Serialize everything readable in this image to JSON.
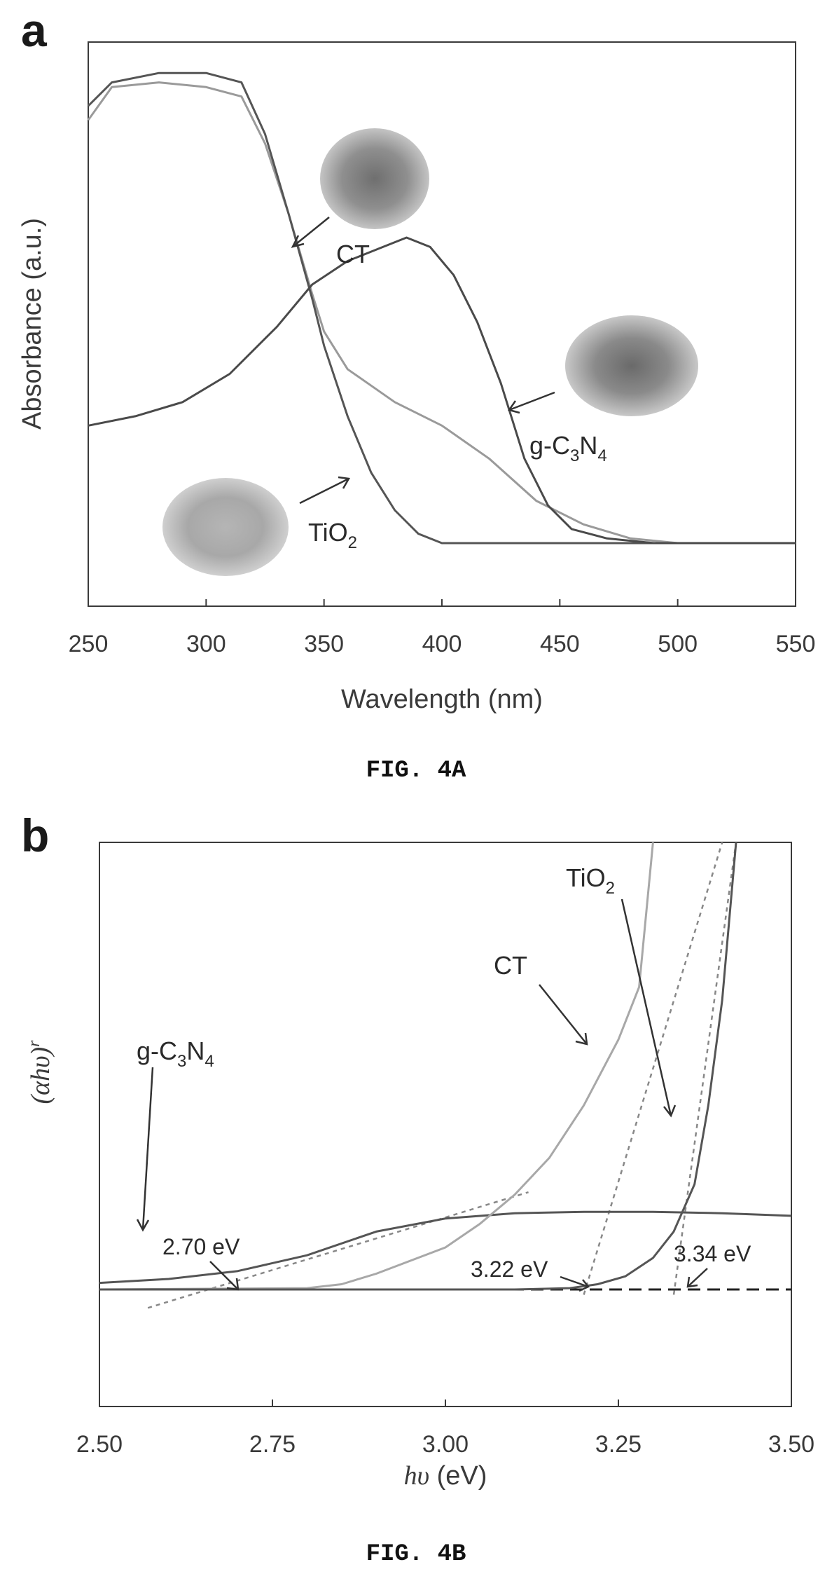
{
  "chart_data": [
    {
      "panel": "a",
      "type": "line",
      "xlabel": "Wavelength (nm)",
      "ylabel": "Absorbance (a.u.)",
      "xlim": [
        250,
        550
      ],
      "ylim": [
        0,
        1.2
      ],
      "xticks": [
        "250",
        "300",
        "350",
        "400",
        "450",
        "500",
        "550"
      ],
      "series": [
        {
          "name": "CT",
          "color": "#9a9a9a",
          "x": [
            250,
            260,
            280,
            300,
            315,
            325,
            335,
            345,
            350,
            360,
            380,
            400,
            420,
            440,
            460,
            480,
            500,
            550
          ],
          "y": [
            0.9,
            0.97,
            0.98,
            0.97,
            0.95,
            0.85,
            0.7,
            0.53,
            0.45,
            0.37,
            0.3,
            0.25,
            0.18,
            0.09,
            0.04,
            0.01,
            0.0,
            0.0
          ]
        },
        {
          "name": "TiO2",
          "color": "#555555",
          "x": [
            250,
            260,
            280,
            300,
            315,
            325,
            335,
            345,
            350,
            360,
            370,
            380,
            390,
            400,
            410,
            550
          ],
          "y": [
            0.93,
            0.98,
            1.0,
            1.0,
            0.98,
            0.87,
            0.7,
            0.52,
            0.42,
            0.27,
            0.15,
            0.07,
            0.02,
            0.0,
            0.0,
            0.0
          ]
        },
        {
          "name": "g-C3N4",
          "color": "#4a4a4a",
          "x": [
            250,
            270,
            290,
            310,
            330,
            345,
            360,
            375,
            385,
            395,
            405,
            415,
            425,
            435,
            445,
            455,
            470,
            490,
            510,
            550
          ],
          "y": [
            0.25,
            0.27,
            0.3,
            0.36,
            0.46,
            0.55,
            0.6,
            0.63,
            0.65,
            0.63,
            0.57,
            0.47,
            0.34,
            0.18,
            0.08,
            0.03,
            0.01,
            0.0,
            0.0,
            0.0
          ]
        }
      ],
      "labels": {
        "ct": "CT",
        "gcn": "g-C3N4",
        "tio2": "TiO2"
      }
    },
    {
      "panel": "b",
      "type": "line",
      "xlabel": "hυ (eV)",
      "ylabel": "(αhυ)^r",
      "xlim": [
        2.5,
        3.5
      ],
      "ylim": [
        -0.1,
        1.7
      ],
      "xticks": [
        "2.50",
        "2.75",
        "3.00",
        "3.25",
        "3.50"
      ],
      "series": [
        {
          "name": "g-C3N4",
          "color": "#555555",
          "x": [
            2.5,
            2.6,
            2.7,
            2.8,
            2.9,
            3.0,
            3.1,
            3.2,
            3.3,
            3.4,
            3.5
          ],
          "y": [
            0.025,
            0.04,
            0.07,
            0.13,
            0.22,
            0.27,
            0.29,
            0.295,
            0.295,
            0.29,
            0.28
          ]
        },
        {
          "name": "CT",
          "color": "#a8a8a8",
          "x": [
            2.5,
            2.8,
            2.85,
            2.9,
            3.0,
            3.05,
            3.1,
            3.15,
            3.2,
            3.25,
            3.28,
            3.3
          ],
          "y": [
            0.0,
            0.005,
            0.02,
            0.06,
            0.16,
            0.25,
            0.36,
            0.5,
            0.7,
            0.95,
            1.15,
            1.7
          ]
        },
        {
          "name": "TiO2",
          "color": "#555555",
          "x": [
            2.5,
            3.1,
            3.18,
            3.22,
            3.26,
            3.3,
            3.33,
            3.36,
            3.38,
            3.4,
            3.42
          ],
          "y": [
            0.0,
            0.0,
            0.005,
            0.02,
            0.05,
            0.12,
            0.22,
            0.4,
            0.7,
            1.1,
            1.7
          ]
        }
      ],
      "tangents": [
        {
          "x1": 2.57,
          "y1": -0.07,
          "x2": 3.12,
          "y2": 0.37
        },
        {
          "x1": 3.2,
          "y1": -0.02,
          "x2": 3.4,
          "y2": 1.7
        },
        {
          "x1": 3.33,
          "y1": -0.02,
          "x2": 3.42,
          "y2": 1.7
        }
      ],
      "baseline_y": 0.0,
      "annotations": [
        {
          "text": "2.70 eV",
          "x": 2.7
        },
        {
          "text": "3.22 eV",
          "x": 3.22
        },
        {
          "text": "3.34 eV",
          "x": 3.34
        }
      ],
      "labels": {
        "ct": "CT",
        "gcn": "g-C3N4",
        "tio2": "TiO2"
      }
    }
  ],
  "panel_a": {
    "letter": "a",
    "caption": "FIG. 4A"
  },
  "panel_b": {
    "letter": "b",
    "caption": "FIG. 4B"
  }
}
